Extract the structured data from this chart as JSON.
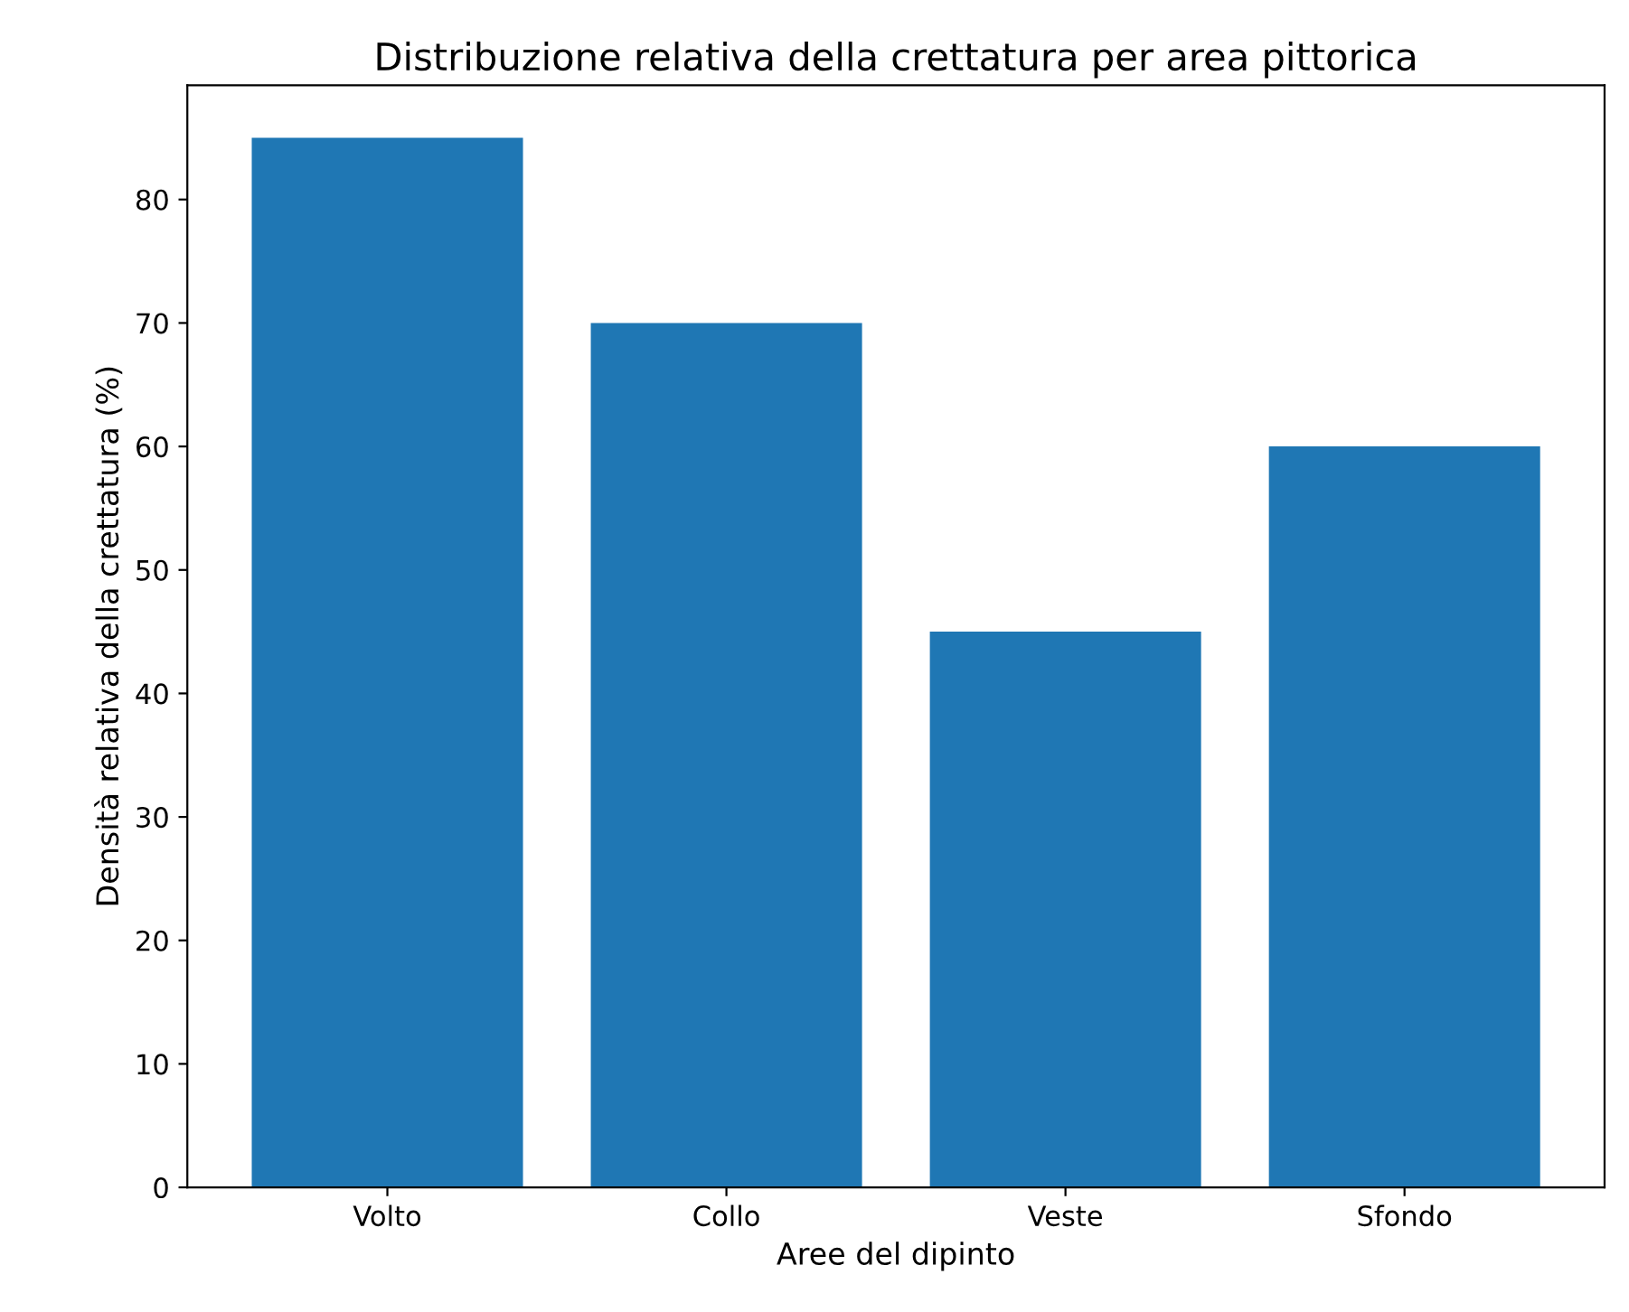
{
  "chart_data": {
    "type": "bar",
    "title": "Distribuzione relativa della crettatura per area pittorica",
    "xlabel": "Aree del dipinto",
    "ylabel": "Densità relativa della crettatura (%)",
    "categories": [
      "Volto",
      "Collo",
      "Veste",
      "Sfondo"
    ],
    "values": [
      85,
      70,
      45,
      60
    ],
    "color": "#1f77b4",
    "ylim": [
      0,
      89.25
    ],
    "yticks": [
      0,
      10,
      20,
      30,
      40,
      50,
      60,
      70,
      80
    ],
    "grid": false
  }
}
